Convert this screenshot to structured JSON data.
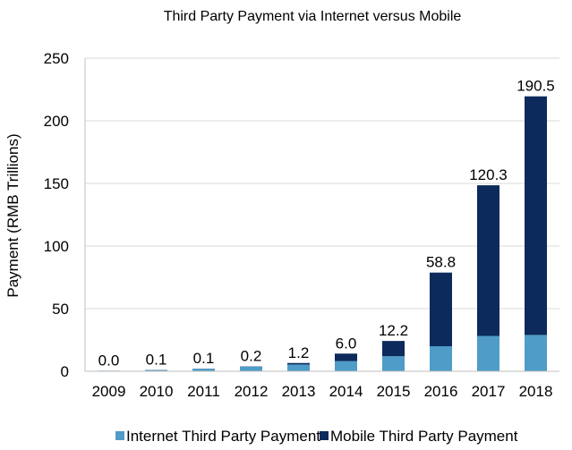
{
  "chart_data": {
    "type": "bar",
    "stacked": true,
    "title": "Third Party Payment via Internet versus Mobile",
    "xlabel": "",
    "ylabel": "Payment (RMB Trillions)",
    "categories": [
      "2009",
      "2010",
      "2011",
      "2012",
      "2013",
      "2014",
      "2015",
      "2016",
      "2017",
      "2018"
    ],
    "ylim": [
      0,
      250
    ],
    "yticks": [
      0,
      50,
      100,
      150,
      200,
      250
    ],
    "grid": true,
    "legend_position": "bottom",
    "series": [
      {
        "name": "Internet Third Party Payment",
        "color": "#4f9cc8",
        "values": [
          0.5,
          1.0,
          2.0,
          3.7,
          5.4,
          8.1,
          12.0,
          20.0,
          28.2,
          29.0
        ]
      },
      {
        "name": "Mobile Third Party Payment",
        "color": "#0c2a5c",
        "values": [
          0.0,
          0.1,
          0.1,
          0.2,
          1.2,
          6.0,
          12.2,
          58.8,
          120.3,
          190.5
        ]
      }
    ],
    "data_labels": [
      "0.0",
      "0.1",
      "0.1",
      "0.2",
      "1.2",
      "6.0",
      "12.2",
      "58.8",
      "120.3",
      "190.5"
    ]
  }
}
